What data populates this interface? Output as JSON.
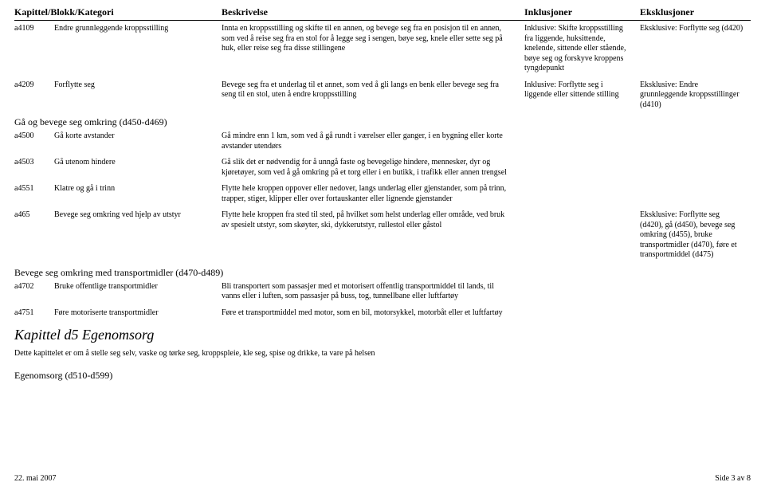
{
  "header": {
    "col1": "Kapittel/Blokk/Kategori",
    "col2": "Beskrivelse",
    "col3": "Inklusjoner",
    "col4": "Eksklusjoner"
  },
  "rows": [
    {
      "code": "a4109",
      "name": "Endre grunnleggende kroppsstilling",
      "desc": "Innta en kroppsstilling og skifte til en annen, og bevege seg fra en posisjon til en annen, som ved å reise seg fra en stol for å legge seg i sengen, bøye seg, knele eller sette seg på huk, eller reise seg fra disse stillingene",
      "incl": "Inklusive: Skifte kroppsstilling fra liggende, huksittende, knelende, sittende eller stående, bøye seg og forskyve kroppens tyngdepunkt",
      "excl": "Eksklusive: Forflytte seg (d420)"
    },
    {
      "code": "a4209",
      "name": "Forflytte seg",
      "desc": "Bevege seg fra et underlag til et annet, som ved å gli langs en benk eller bevege seg fra seng til en stol, uten å endre kroppsstilling",
      "incl": "Inklusive: Forflytte seg i liggende eller sittende stilling",
      "excl": "Eksklusive: Endre grunnleggende kroppsstillinger (d410)"
    }
  ],
  "section1": "Gå og bevege seg omkring (d450-d469)",
  "rows2": [
    {
      "code": "a4500",
      "name": "Gå korte avstander",
      "desc": "Gå mindre enn 1 km, som ved å gå rundt i værelser eller ganger, i en bygning eller korte avstander utendørs",
      "incl": "",
      "excl": ""
    },
    {
      "code": "a4503",
      "name": "Gå utenom hindere",
      "desc": "Gå slik det er nødvendig for å unngå faste og bevegelige hindere, mennesker, dyr og kjøretøyer, som ved å gå omkring på et torg eller i en butikk, i trafikk eller annen trengsel",
      "incl": "",
      "excl": ""
    },
    {
      "code": "a4551",
      "name": "Klatre og gå i trinn",
      "desc": "Flytte hele kroppen oppover eller nedover, langs underlag eller gjenstander, som på trinn, trapper, stiger, klipper eller over fortauskanter eller lignende gjenstander",
      "incl": "",
      "excl": ""
    },
    {
      "code": "a465",
      "name": "Bevege seg omkring ved hjelp av utstyr",
      "desc": "Flytte hele kroppen fra sted til sted, på hvilket som helst underlag eller område, ved bruk av spesielt utstyr, som skøyter, ski, dykkerutstyr, rullestol eller gåstol",
      "incl": "",
      "excl": "Eksklusive: Forflytte seg (d420), gå (d450), bevege seg omkring (d455), bruke transportmidler (d470), føre et transportmiddel (d475)"
    }
  ],
  "section2": "Bevege seg omkring med transportmidler (d470-d489)",
  "rows3": [
    {
      "code": "a4702",
      "name": "Bruke offentlige transportmidler",
      "desc": "Bli transportert som passasjer med et motorisert offentlig transportmiddel til lands, til vanns eller i luften, som passasjer på buss, tog, tunnellbane eller luftfartøy",
      "incl": "",
      "excl": ""
    },
    {
      "code": "a4751",
      "name": "Føre motoriserte transportmidler",
      "desc": "Føre et transportmiddel med motor, som en bil, motorsykkel, motorbåt eller et luftfartøy",
      "incl": "",
      "excl": ""
    }
  ],
  "chapter": {
    "title": "Kapittel d5 Egenomsorg",
    "desc": "Dette kapittelet er om å stelle seg selv, vaske og tørke seg, kroppspleie, kle seg, spise og drikke, ta vare på helsen"
  },
  "section3": "Egenomsorg (d510-d599)",
  "footer": {
    "left": "22. mai 2007",
    "right": "Side 3 av 8"
  }
}
